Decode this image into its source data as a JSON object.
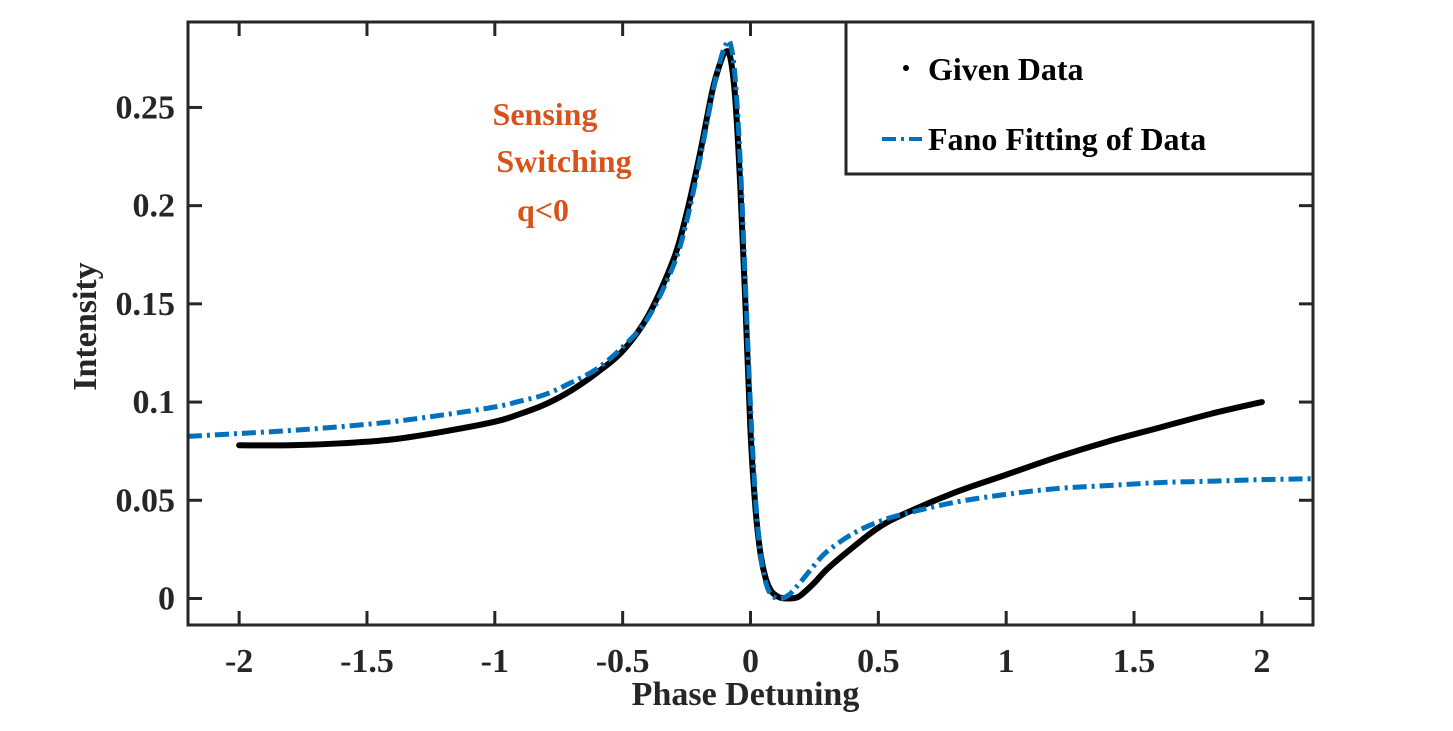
{
  "chart_data": {
    "type": "line",
    "xlabel": "Phase Detuning",
    "ylabel": "Intensity",
    "xlim": [
      -2.2,
      2.2
    ],
    "ylim": [
      -0.0135,
      0.2935
    ],
    "xticks": [
      -2,
      -1.5,
      -1,
      -0.5,
      0,
      0.5,
      1,
      1.5,
      2
    ],
    "xtick_labels": [
      "-2",
      "-1.5",
      "-1",
      "-0.5",
      "0",
      "0.5",
      "1",
      "1.5",
      "2"
    ],
    "yticks": [
      0,
      0.05,
      0.1,
      0.15,
      0.2,
      0.25
    ],
    "ytick_labels": [
      "0",
      "0.05",
      "0.1",
      "0.15",
      "0.2",
      "0.25"
    ],
    "grid": false,
    "legend_position": "top-right",
    "annotation": {
      "lines": [
        "Sensing",
        "Switching",
        "q<0"
      ],
      "color": "#D95319"
    },
    "series": [
      {
        "name": "Given Data",
        "style": "dots",
        "color": "#000000",
        "x": [
          -2.0,
          -1.8,
          -1.6,
          -1.4,
          -1.2,
          -1.0,
          -0.9,
          -0.8,
          -0.7,
          -0.6,
          -0.5,
          -0.4,
          -0.3,
          -0.25,
          -0.2,
          -0.15,
          -0.12,
          -0.1,
          -0.08,
          -0.06,
          -0.04,
          -0.02,
          0.0,
          0.02,
          0.04,
          0.06,
          0.08,
          0.1,
          0.12,
          0.15,
          0.18,
          0.2,
          0.25,
          0.3,
          0.4,
          0.5,
          0.6,
          0.8,
          1.0,
          1.2,
          1.4,
          1.6,
          1.8,
          2.0
        ],
        "y": [
          0.078,
          0.078,
          0.079,
          0.081,
          0.085,
          0.09,
          0.094,
          0.099,
          0.106,
          0.115,
          0.126,
          0.144,
          0.173,
          0.196,
          0.225,
          0.258,
          0.272,
          0.278,
          0.276,
          0.255,
          0.21,
          0.15,
          0.085,
          0.045,
          0.022,
          0.01,
          0.004,
          0.0015,
          0.0003,
          0.0,
          0.0005,
          0.002,
          0.008,
          0.015,
          0.026,
          0.036,
          0.043,
          0.054,
          0.063,
          0.072,
          0.08,
          0.087,
          0.094,
          0.1
        ]
      },
      {
        "name": "Fano Fitting of Data",
        "style": "dash-dot",
        "color": "#0072BD",
        "x": [
          -2.2,
          -2.0,
          -1.8,
          -1.6,
          -1.4,
          -1.2,
          -1.0,
          -0.9,
          -0.8,
          -0.7,
          -0.6,
          -0.5,
          -0.4,
          -0.3,
          -0.25,
          -0.2,
          -0.15,
          -0.12,
          -0.1,
          -0.08,
          -0.06,
          -0.04,
          -0.02,
          0.0,
          0.02,
          0.04,
          0.06,
          0.08,
          0.1,
          0.12,
          0.14,
          0.16,
          0.2,
          0.25,
          0.3,
          0.4,
          0.5,
          0.6,
          0.8,
          1.0,
          1.2,
          1.4,
          1.6,
          1.8,
          2.0,
          2.2
        ],
        "y": [
          0.0825,
          0.084,
          0.0855,
          0.0875,
          0.09,
          0.0935,
          0.0975,
          0.1005,
          0.104,
          0.11,
          0.117,
          0.128,
          0.143,
          0.17,
          0.192,
          0.222,
          0.256,
          0.273,
          0.281,
          0.283,
          0.265,
          0.222,
          0.16,
          0.098,
          0.05,
          0.022,
          0.008,
          0.002,
          0.0003,
          0.0,
          0.001,
          0.003,
          0.009,
          0.017,
          0.024,
          0.033,
          0.039,
          0.043,
          0.049,
          0.053,
          0.056,
          0.0575,
          0.059,
          0.0597,
          0.0605,
          0.061
        ]
      }
    ]
  }
}
